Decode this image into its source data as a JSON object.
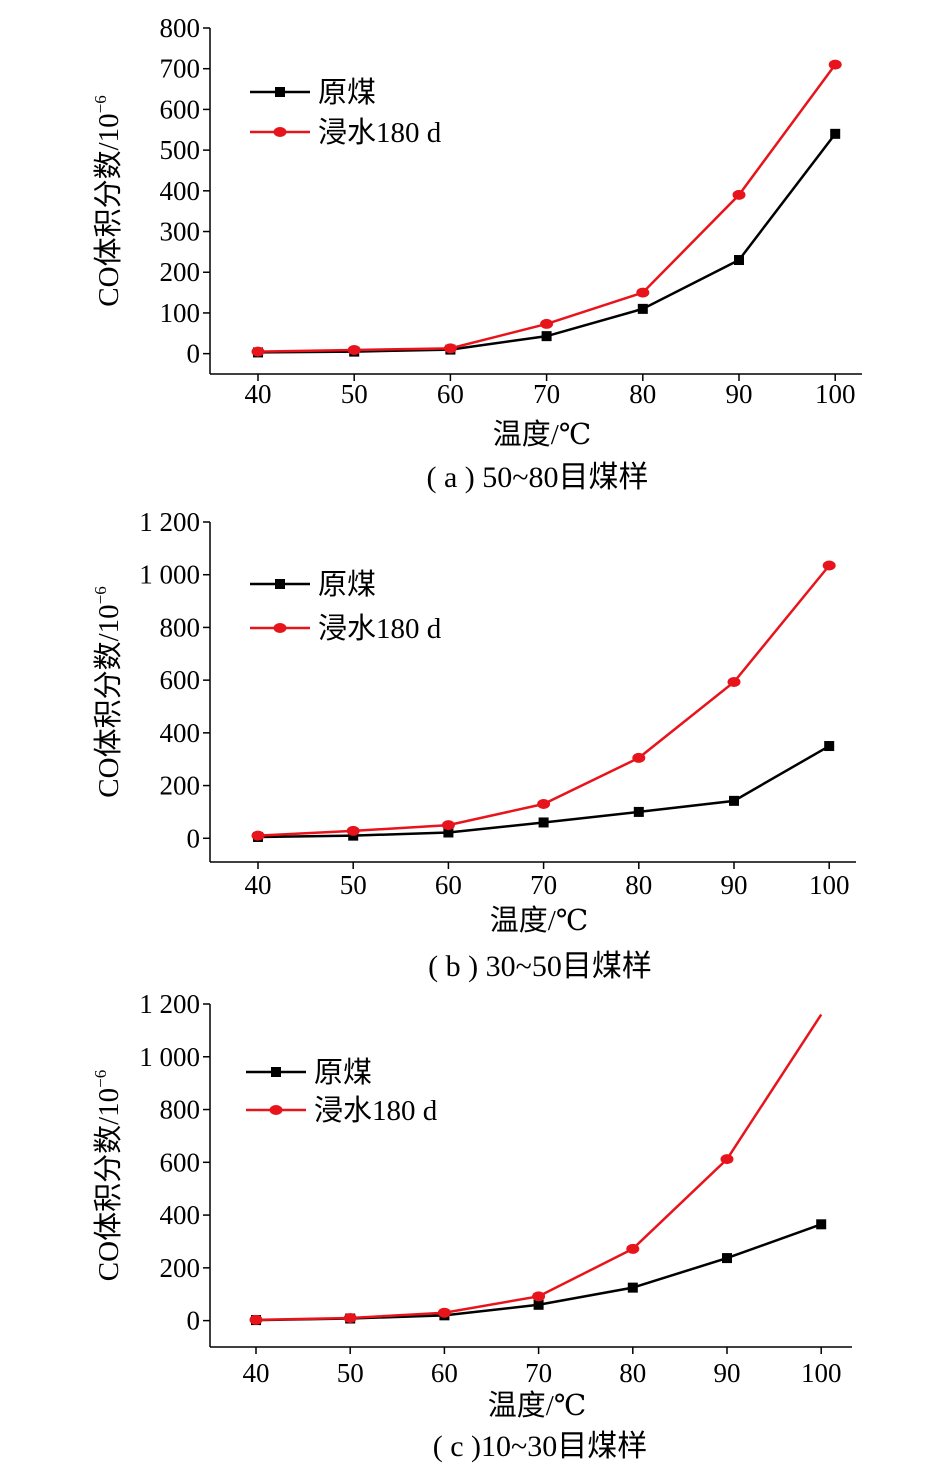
{
  "chart_data": [
    {
      "id": "a",
      "type": "line",
      "caption": "( a ) 50~80目煤样",
      "xlabel": "温度/℃",
      "ylabel": "CO体积分数/10",
      "ylabel_sup": "−6",
      "x": [
        40,
        50,
        60,
        70,
        80,
        90,
        100
      ],
      "xticks": [
        "40",
        "50",
        "60",
        "70",
        "80",
        "90",
        "100"
      ],
      "ylim": [
        -50,
        800
      ],
      "yticks": [
        0,
        100,
        200,
        300,
        400,
        500,
        600,
        700,
        800
      ],
      "ytick_labels": [
        "0",
        "100",
        "200",
        "300",
        "400",
        "500",
        "600",
        "700",
        "800"
      ],
      "series": [
        {
          "name": "原煤",
          "color": "#000000",
          "marker": "square",
          "values": [
            3,
            5,
            10,
            43,
            110,
            230,
            540
          ]
        },
        {
          "name": "浸水180 d",
          "color": "#e8141c",
          "marker": "circle",
          "values": [
            5,
            9,
            13,
            73,
            150,
            390,
            710
          ]
        }
      ]
    },
    {
      "id": "b",
      "type": "line",
      "caption": "( b ) 30~50目煤样",
      "xlabel": "温度/℃",
      "ylabel": "CO体积分数/10",
      "ylabel_sup": "−6",
      "x": [
        40,
        50,
        60,
        70,
        80,
        90,
        100
      ],
      "xticks": [
        "40",
        "50",
        "60",
        "70",
        "80",
        "90",
        "100"
      ],
      "ylim": [
        -90,
        1200
      ],
      "yticks": [
        0,
        200,
        400,
        600,
        800,
        1000,
        1200
      ],
      "ytick_labels": [
        "0",
        "200",
        "400",
        "600",
        "800",
        "1 000",
        "1 200"
      ],
      "series": [
        {
          "name": "原煤",
          "color": "#000000",
          "marker": "square",
          "values": [
            5,
            10,
            22,
            60,
            100,
            142,
            350
          ]
        },
        {
          "name": "浸水180 d",
          "color": "#e8141c",
          "marker": "circle",
          "values": [
            10,
            28,
            50,
            130,
            305,
            593,
            1035
          ]
        }
      ]
    },
    {
      "id": "c",
      "type": "line",
      "caption": "( c )10~30目煤样",
      "xlabel": "温度/℃",
      "ylabel": "CO体积分数/10",
      "ylabel_sup": "−6",
      "x": [
        40,
        50,
        60,
        70,
        80,
        90,
        100
      ],
      "xticks": [
        "40",
        "50",
        "60",
        "70",
        "80",
        "90",
        "100"
      ],
      "ylim": [
        -100,
        1200
      ],
      "yticks": [
        0,
        200,
        400,
        600,
        800,
        1000,
        1200
      ],
      "ytick_labels": [
        "0",
        "200",
        "400",
        "600",
        "800",
        "1 000",
        "1 200"
      ],
      "series": [
        {
          "name": "原煤",
          "color": "#000000",
          "marker": "square",
          "values": [
            2,
            8,
            20,
            60,
            125,
            237,
            365
          ]
        },
        {
          "name": "浸水180 d",
          "color": "#e8141c",
          "marker": "circle",
          "values": [
            3,
            10,
            30,
            92,
            272,
            612,
            1160
          ]
        }
      ]
    }
  ]
}
